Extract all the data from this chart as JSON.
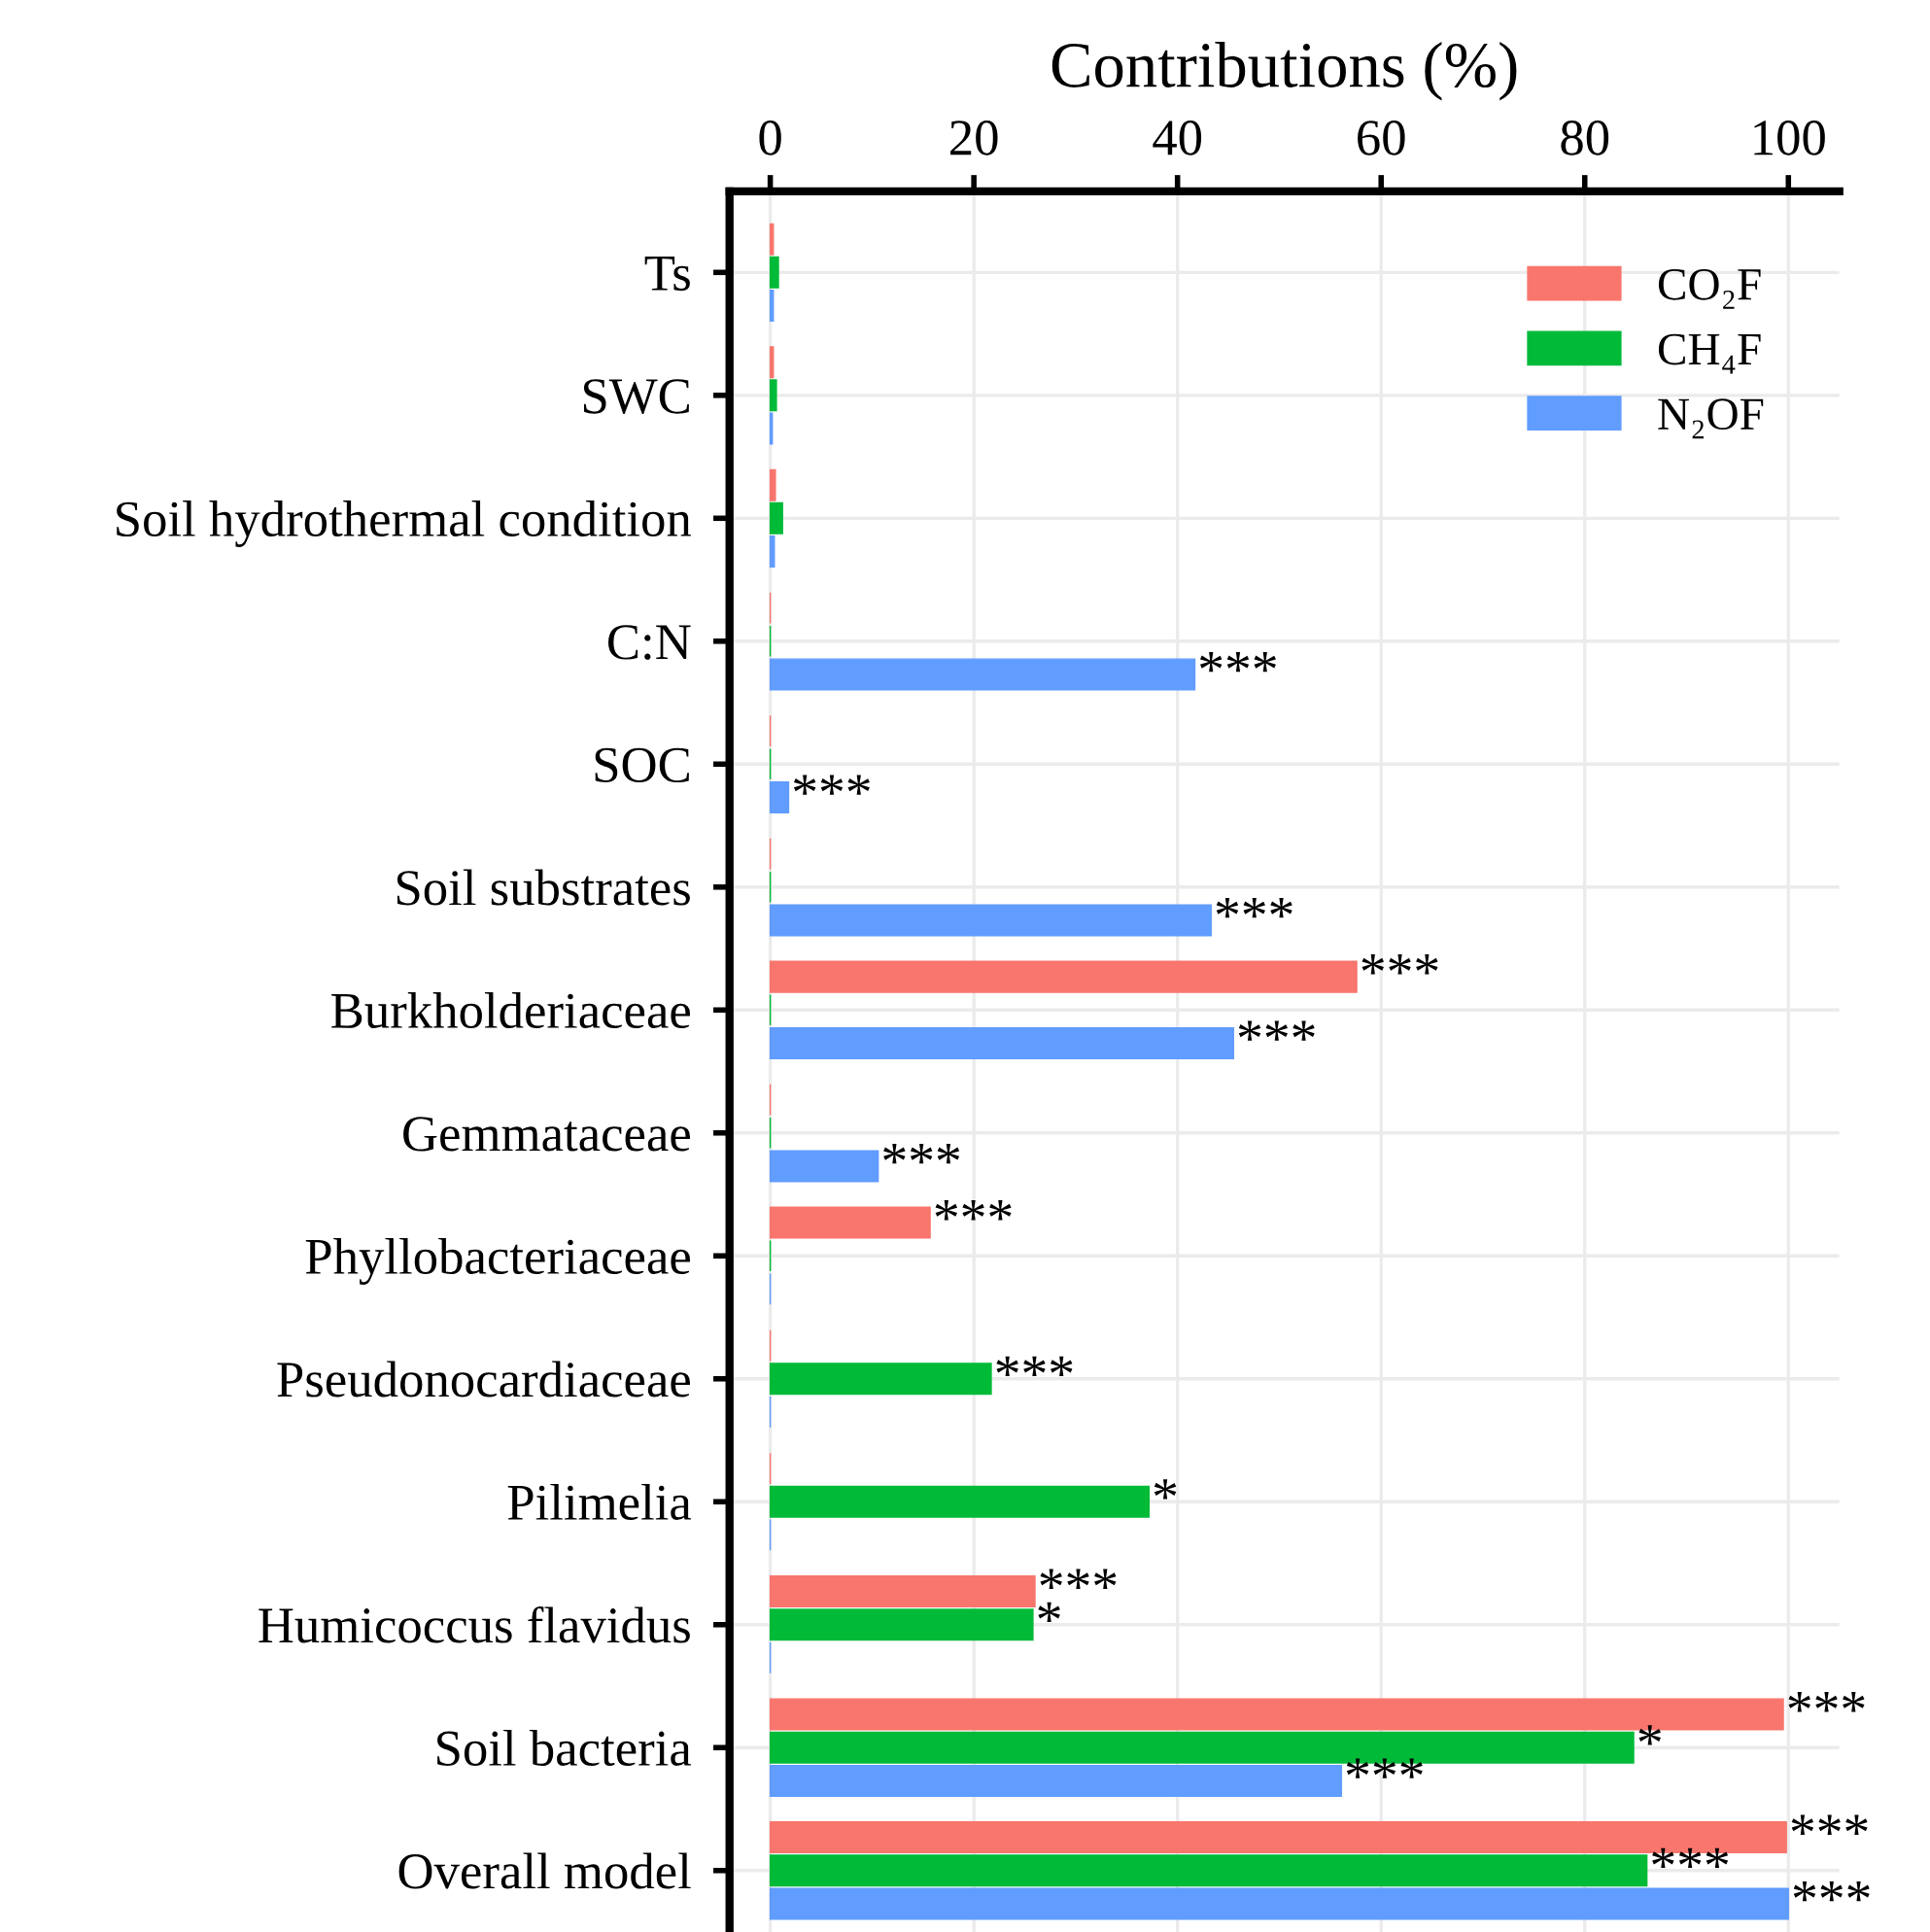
{
  "chart_data": {
    "type": "bar",
    "orientation": "horizontal",
    "xlabel": "Contributions (%)",
    "categories": [
      "Ts",
      "SWC",
      "Soil hydrothermal condition",
      "C:N",
      "SOC",
      "Soil substrates",
      "Burkholderiaceae",
      "Gemmataceae",
      "Phyllobacteriaceae",
      "Pseudonocardiaceae",
      "Pilimelia",
      "Humicoccus flavidus",
      "Soil bacteria",
      "Overall model"
    ],
    "series": [
      {
        "name": "CO₂F",
        "color": "#f8766d",
        "values": [
          0.3,
          0.3,
          0.5,
          0,
          0,
          0,
          57.6,
          0,
          15.7,
          0,
          0,
          26,
          99.5,
          99.8
        ],
        "value_labels": [
          null,
          null,
          null,
          null,
          null,
          null,
          "***",
          null,
          "***",
          null,
          null,
          "***",
          "***",
          "***"
        ]
      },
      {
        "name": "CH₄F",
        "color": "#00ba38",
        "values": [
          0.8,
          0.6,
          1.2,
          0,
          0,
          0,
          0,
          0,
          0,
          21.7,
          37.2,
          25.8,
          84.8,
          86.1
        ],
        "value_labels": [
          null,
          null,
          null,
          null,
          null,
          null,
          null,
          null,
          null,
          "***",
          "*",
          "*",
          "*",
          "***"
        ]
      },
      {
        "name": "N₂OF",
        "color": "#619cff",
        "values": [
          0.3,
          0.2,
          0.4,
          41.7,
          1.8,
          43.3,
          45.5,
          10.6,
          0,
          0,
          0,
          0,
          56.1,
          100
        ],
        "value_labels": [
          null,
          null,
          null,
          "***",
          "***",
          "***",
          "***",
          "***",
          null,
          null,
          null,
          null,
          "***",
          "***"
        ]
      }
    ],
    "xlim": [
      -4,
      105
    ],
    "xticks": [
      0,
      20,
      40,
      60,
      80,
      100
    ],
    "grid": true,
    "legend": "top right"
  }
}
